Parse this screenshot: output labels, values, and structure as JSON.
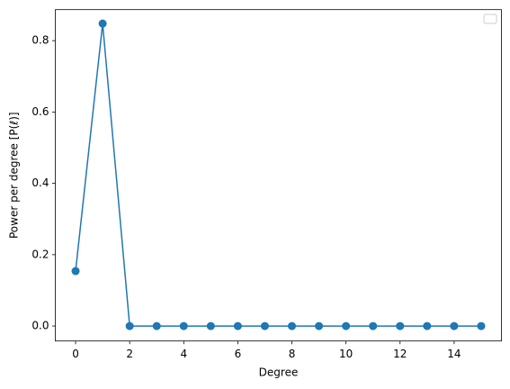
{
  "chart_data": {
    "type": "line",
    "x": [
      0,
      1,
      2,
      3,
      4,
      5,
      6,
      7,
      8,
      9,
      10,
      11,
      12,
      13,
      14,
      15
    ],
    "series": [
      {
        "color": "#1f77b4",
        "values": [
          0.154,
          0.848,
          0,
          0,
          0,
          0,
          0,
          0,
          0,
          0,
          0,
          0,
          0,
          0,
          0,
          0
        ]
      }
    ],
    "xlabel": "Degree",
    "ylabel": "Power per degree [P(ℓ)]",
    "xlim": [
      -0.75,
      15.75
    ],
    "ylim": [
      -0.042,
      0.887
    ],
    "xticks": [
      0,
      2,
      4,
      6,
      8,
      10,
      12,
      14
    ],
    "yticks": [
      {
        "value": 0,
        "label": "0.0"
      },
      {
        "value": 0.2,
        "label": "0.2"
      },
      {
        "value": 0.4,
        "label": "0.4"
      },
      {
        "value": 0.6,
        "label": "0.6"
      },
      {
        "value": 0.8,
        "label": "0.8"
      }
    ],
    "markers": true
  }
}
